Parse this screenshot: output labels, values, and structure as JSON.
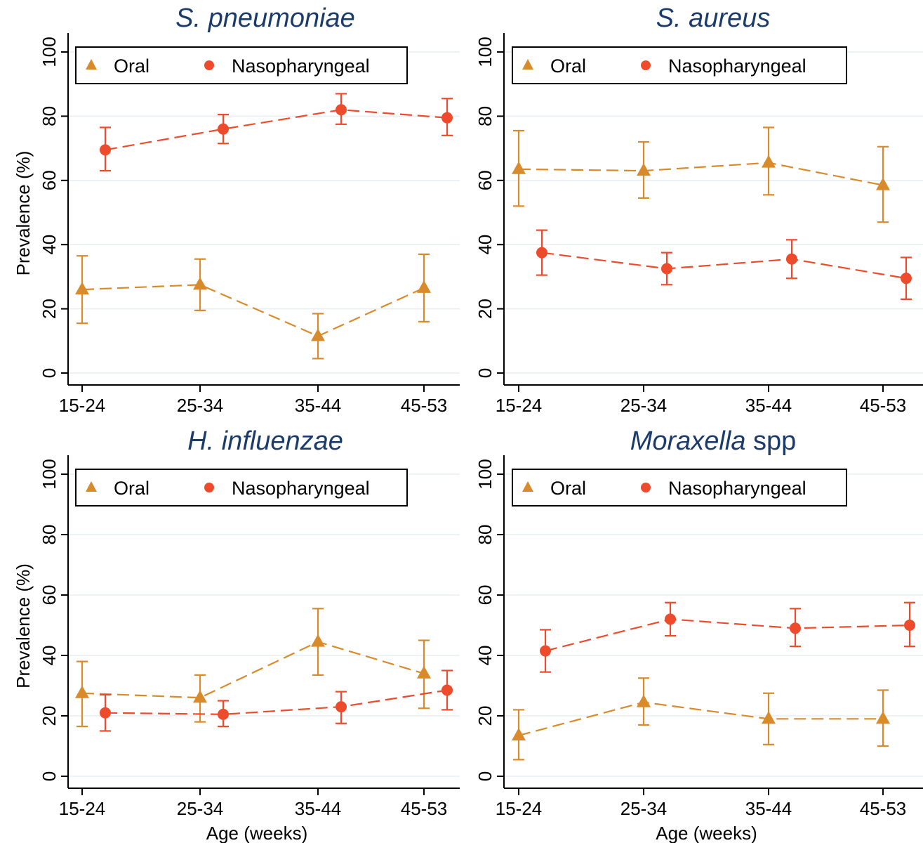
{
  "chart_data": [
    {
      "type": "line",
      "title": {
        "italic": "S. pneumoniae",
        "plain": ""
      },
      "xlabel": "",
      "ylabel": "Prevalence (%)",
      "categories": [
        "15-24",
        "25-34",
        "35-44",
        "45-53"
      ],
      "ylim": [
        0,
        100
      ],
      "yticks": [
        0,
        20,
        40,
        60,
        80,
        100
      ],
      "grid": true,
      "legend": {
        "position": "top-left",
        "labels": [
          "Oral",
          "Nasopharyngeal"
        ]
      },
      "series": [
        {
          "name": "Oral",
          "marker": "triangle",
          "color": "#d98a2b",
          "values": [
            26,
            27.5,
            11.5,
            26.5
          ],
          "lower": [
            15.5,
            19.5,
            4.5,
            16
          ],
          "upper": [
            36.5,
            35.5,
            18.5,
            37
          ]
        },
        {
          "name": "Nasopharyngeal",
          "marker": "circle",
          "color": "#ee4a2c",
          "values": [
            69.5,
            76,
            82,
            79.5
          ],
          "lower": [
            63,
            71.5,
            77.5,
            74
          ],
          "upper": [
            76.5,
            80.5,
            87,
            85.5
          ]
        }
      ]
    },
    {
      "type": "line",
      "title": {
        "italic": "S. aureus",
        "plain": ""
      },
      "xlabel": "",
      "ylabel": "",
      "categories": [
        "15-24",
        "25-34",
        "35-44",
        "45-53"
      ],
      "ylim": [
        0,
        100
      ],
      "yticks": [
        0,
        20,
        40,
        60,
        80,
        100
      ],
      "grid": true,
      "legend": {
        "position": "top-left",
        "labels": [
          "Oral",
          "Nasopharyngeal"
        ]
      },
      "series": [
        {
          "name": "Oral",
          "marker": "triangle",
          "color": "#d98a2b",
          "values": [
            63.5,
            63,
            65.5,
            58.5
          ],
          "lower": [
            52,
            54.5,
            55.5,
            47
          ],
          "upper": [
            75.5,
            72,
            76.5,
            70.5
          ]
        },
        {
          "name": "Nasopharyngeal",
          "marker": "circle",
          "color": "#ee4a2c",
          "values": [
            37.5,
            32.5,
            35.5,
            29.5
          ],
          "lower": [
            30.5,
            27.5,
            29.5,
            23
          ],
          "upper": [
            44.5,
            37.5,
            41.5,
            36
          ]
        }
      ]
    },
    {
      "type": "line",
      "title": {
        "italic": "H. influenzae",
        "plain": ""
      },
      "xlabel": "Age (weeks)",
      "ylabel": "Prevalence (%)",
      "categories": [
        "15-24",
        "25-34",
        "35-44",
        "45-53"
      ],
      "ylim": [
        0,
        100
      ],
      "yticks": [
        0,
        20,
        40,
        60,
        80,
        100
      ],
      "grid": true,
      "legend": {
        "position": "top-left",
        "labels": [
          "Oral",
          "Nasopharyngeal"
        ]
      },
      "series": [
        {
          "name": "Oral",
          "marker": "triangle",
          "color": "#d98a2b",
          "values": [
            27.5,
            26,
            44.5,
            34
          ],
          "lower": [
            16.5,
            18,
            33.5,
            22.5
          ],
          "upper": [
            38,
            33.5,
            55.5,
            45
          ]
        },
        {
          "name": "Nasopharyngeal",
          "marker": "circle",
          "color": "#ee4a2c",
          "values": [
            21,
            20.5,
            23,
            28.5
          ],
          "lower": [
            15,
            16.5,
            17.5,
            22
          ],
          "upper": [
            27,
            25,
            28,
            35
          ]
        }
      ]
    },
    {
      "type": "line",
      "title": {
        "italic": "Moraxella",
        "plain": " spp"
      },
      "xlabel": "Age (weeks)",
      "ylabel": "",
      "categories": [
        "15-24",
        "25-34",
        "35-44",
        "45-53"
      ],
      "ylim": [
        0,
        100
      ],
      "yticks": [
        0,
        20,
        40,
        60,
        80,
        100
      ],
      "grid": true,
      "legend": {
        "position": "top-left",
        "labels": [
          "Oral",
          "Nasopharyngeal"
        ]
      },
      "series": [
        {
          "name": "Oral",
          "marker": "triangle",
          "color": "#d98a2b",
          "values": [
            13.5,
            24.5,
            19,
            19
          ],
          "lower": [
            5.5,
            17,
            10.5,
            10
          ],
          "upper": [
            22,
            32.5,
            27.5,
            28.5
          ]
        },
        {
          "name": "Nasopharyngeal",
          "marker": "circle",
          "color": "#ee4a2c",
          "values": [
            41.5,
            52,
            49,
            50
          ],
          "lower": [
            34.5,
            46.5,
            43,
            43
          ],
          "upper": [
            48.5,
            57.5,
            55.5,
            57.5
          ]
        }
      ]
    }
  ]
}
